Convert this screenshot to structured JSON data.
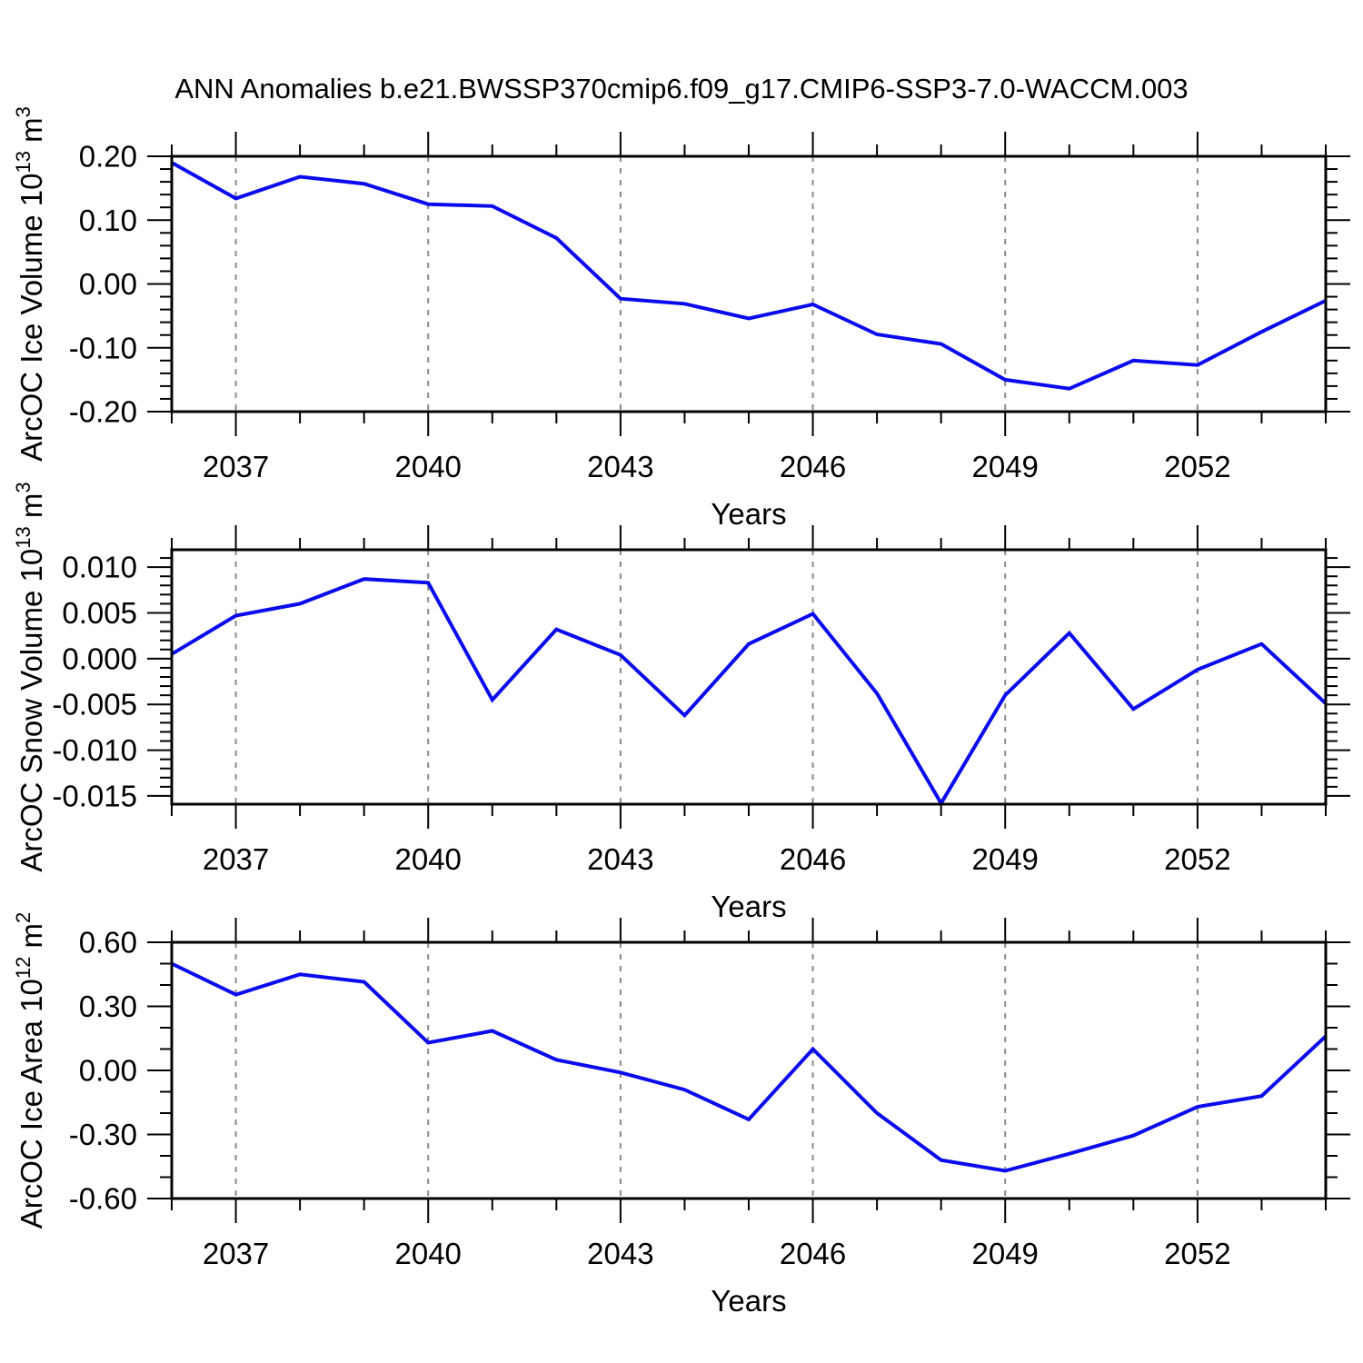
{
  "page": {
    "title": "ANN Anomalies b.e21.BWSSP370cmip6.f09_g17.CMIP6-SSP3-7.0-WACCM.003"
  },
  "style": {
    "line_color": "#0A0AEE",
    "grid_color": "#8a8a8a",
    "axis_color": "#000000"
  },
  "chart_data": [
    {
      "type": "line",
      "title": "",
      "xlabel": "Years",
      "ylabel": {
        "base": "ArcOC Ice Volume 10",
        "exp": "13",
        "unit": " m",
        "unit_exp": "3"
      },
      "x": [
        2036,
        2037,
        2038,
        2039,
        2040,
        2041,
        2042,
        2043,
        2044,
        2045,
        2046,
        2047,
        2048,
        2049,
        2050,
        2051,
        2052,
        2053,
        2054
      ],
      "values": [
        0.19,
        0.134,
        0.168,
        0.157,
        0.125,
        0.122,
        0.072,
        -0.023,
        -0.031,
        -0.054,
        -0.032,
        -0.079,
        -0.094,
        -0.15,
        -0.164,
        -0.12,
        -0.127,
        -0.075,
        -0.026
      ],
      "xlim": [
        2036,
        2054
      ],
      "ylim": [
        -0.2,
        0.2
      ],
      "x_major_ticks": [
        2037,
        2040,
        2043,
        2046,
        2049,
        2052
      ],
      "x_tick_labels": [
        "2037",
        "2040",
        "2043",
        "2046",
        "2049",
        "2052"
      ],
      "x_minor_step": 1,
      "y_major_ticks": [
        0.2,
        0.1,
        0.0,
        -0.1,
        -0.2
      ],
      "y_tick_labels": [
        "0.20",
        "0.10",
        "0.00",
        "-0.10",
        "-0.20"
      ],
      "y_minor_step": 0.02,
      "grid": "vertical-dashed",
      "legend": null
    },
    {
      "type": "line",
      "title": "",
      "xlabel": "Years",
      "ylabel": {
        "base": "ArcOC Snow Volume 10",
        "exp": "13",
        "unit": " m",
        "unit_exp": "3"
      },
      "x": [
        2036,
        2037,
        2038,
        2039,
        2040,
        2041,
        2042,
        2043,
        2044,
        2045,
        2046,
        2047,
        2048,
        2049,
        2050,
        2051,
        2052,
        2053,
        2054
      ],
      "values": [
        0.0005,
        0.0047,
        0.006,
        0.0087,
        0.0083,
        -0.0045,
        0.0032,
        0.0004,
        -0.0062,
        0.0016,
        0.0049,
        -0.0038,
        -0.0158,
        -0.004,
        0.0028,
        -0.0055,
        -0.0012,
        0.0016,
        -0.0049
      ],
      "xlim": [
        2036,
        2054
      ],
      "ylim": [
        -0.0159,
        0.0119
      ],
      "x_major_ticks": [
        2037,
        2040,
        2043,
        2046,
        2049,
        2052
      ],
      "x_tick_labels": [
        "2037",
        "2040",
        "2043",
        "2046",
        "2049",
        "2052"
      ],
      "x_minor_step": 1,
      "y_major_ticks": [
        0.01,
        0.005,
        0.0,
        -0.005,
        -0.01,
        -0.015
      ],
      "y_tick_labels": [
        "0.010",
        "0.005",
        "0.000",
        "-0.005",
        "-0.010",
        "-0.015"
      ],
      "y_minor_step": 0.001,
      "grid": "vertical-dashed",
      "legend": null
    },
    {
      "type": "line",
      "title": "",
      "xlabel": "Years",
      "ylabel": {
        "base": "ArcOC Ice Area 10",
        "exp": "12",
        "unit": " m",
        "unit_exp": "2"
      },
      "x": [
        2036,
        2037,
        2038,
        2039,
        2040,
        2041,
        2042,
        2043,
        2044,
        2045,
        2046,
        2047,
        2048,
        2049,
        2050,
        2051,
        2052,
        2053,
        2054
      ],
      "values": [
        0.5,
        0.355,
        0.45,
        0.415,
        0.13,
        0.185,
        0.05,
        -0.01,
        -0.09,
        -0.23,
        0.1,
        -0.2,
        -0.42,
        -0.47,
        -0.39,
        -0.305,
        -0.17,
        -0.12,
        0.16
      ],
      "xlim": [
        2036,
        2054
      ],
      "ylim": [
        -0.6,
        0.6
      ],
      "x_major_ticks": [
        2037,
        2040,
        2043,
        2046,
        2049,
        2052
      ],
      "x_tick_labels": [
        "2037",
        "2040",
        "2043",
        "2046",
        "2049",
        "2052"
      ],
      "x_minor_step": 1,
      "y_major_ticks": [
        0.6,
        0.3,
        0.0,
        -0.3,
        -0.6
      ],
      "y_tick_labels": [
        "0.60",
        "0.30",
        "0.00",
        "-0.30",
        "-0.60"
      ],
      "y_minor_step": 0.1,
      "grid": "vertical-dashed",
      "legend": null
    }
  ]
}
